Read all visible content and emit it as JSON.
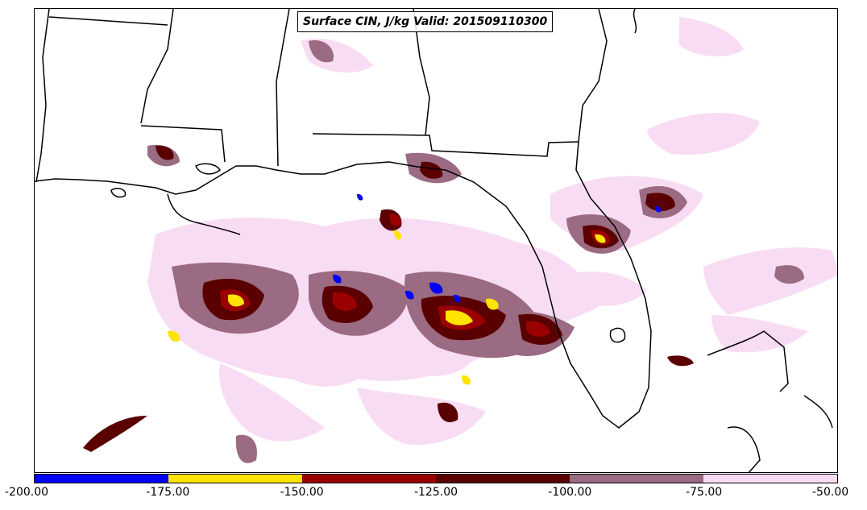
{
  "map": {
    "title": "Surface CIN, J/kg Valid: 201509110300",
    "colors": {
      "lightpink": "#f8dcf4",
      "mauve": "#9a6b82",
      "darkred": "#5a0000",
      "red": "#9b0000",
      "yellow": "#ffe400",
      "blue": "#0000ff",
      "outline": "#000000"
    }
  },
  "legend": {
    "segments": [
      {
        "from": -200,
        "to": -175,
        "color": "#0000ff"
      },
      {
        "from": -175,
        "to": -150,
        "color": "#ffe400"
      },
      {
        "from": -150,
        "to": -125,
        "color": "#9b0000"
      },
      {
        "from": -125,
        "to": -100,
        "color": "#5a0000"
      },
      {
        "from": -100,
        "to": -75,
        "color": "#9a6b82"
      },
      {
        "from": -75,
        "to": -50,
        "color": "#f8dcf4"
      }
    ],
    "labels": [
      "-200.00",
      "-175.00",
      "-150.00",
      "-125.00",
      "-100.00",
      "-75.00",
      "-50.00"
    ]
  }
}
